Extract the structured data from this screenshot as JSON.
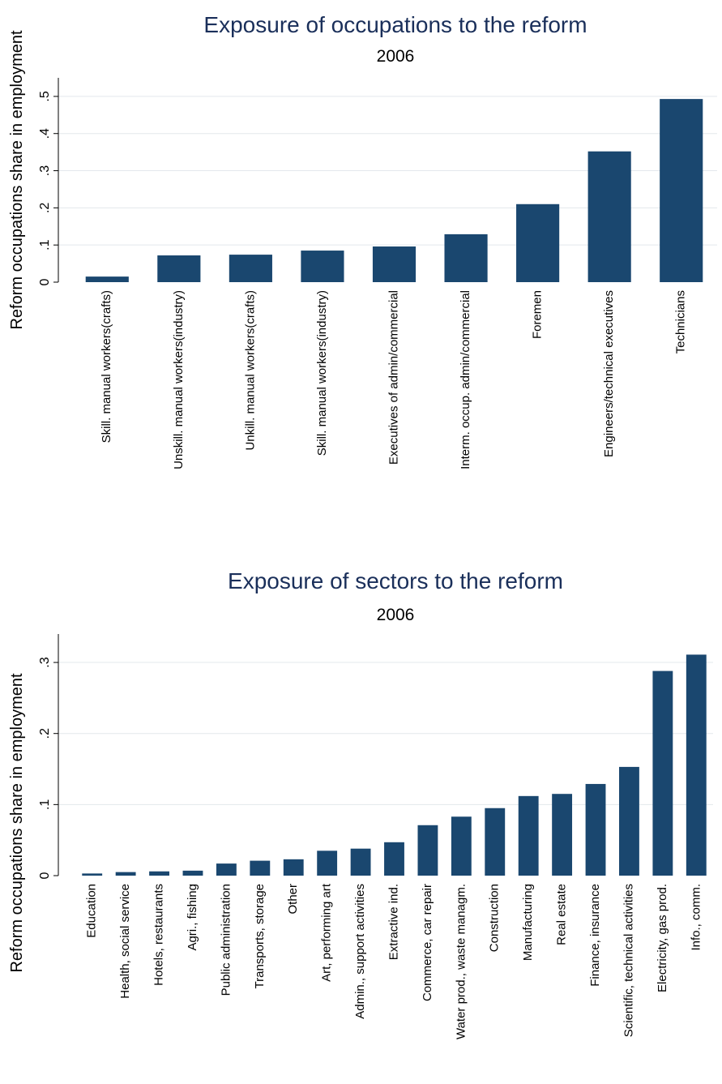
{
  "chart_data": [
    {
      "type": "bar",
      "title": "Exposure of occupations to the reform",
      "subtitle": "2006",
      "y_label": "Reform occupations share in employment",
      "categories": [
        "Skill. manual workers(crafts)",
        "Unskill. manual workers(industry)",
        "Unkill. manual workers(crafts)",
        "Skill. manual workers(industry)",
        "Executives of admin/commercial",
        "Interm. occup. admin/commercial",
        "Foremen",
        "Engineers/technical executives",
        "Technicians"
      ],
      "values": [
        0.015,
        0.072,
        0.074,
        0.085,
        0.096,
        0.129,
        0.21,
        0.352,
        0.493
      ],
      "color": "#1a476f",
      "ylim": [
        0,
        0.55
      ],
      "yticks": [
        0,
        {
          "value": 0.1,
          "label": ".1"
        },
        {
          "value": 0.2,
          "label": ".2"
        },
        {
          "value": 0.3,
          "label": ".3"
        },
        {
          "value": 0.4,
          "label": ".4"
        },
        {
          "value": 0.5,
          "label": ".5"
        }
      ],
      "grid": true
    },
    {
      "type": "bar",
      "title": "Exposure of sectors to the reform",
      "subtitle": "2006",
      "y_label": "Reform occupations share in employment",
      "categories": [
        "Education",
        "Health, social service",
        "Hotels, restaurants",
        "Agri., fishing",
        "Public administration",
        "Transports, storage",
        "Other",
        "Art, performing art",
        "Admin., support activities",
        "Extractive ind.",
        "Commerce, car repair",
        "Water prod., waste managm.",
        "Construction",
        "Manufacturing",
        "Real estate",
        "Finance, insurance",
        "Scientific, technical activities",
        "Electricity, gas prod.",
        "Info., comm."
      ],
      "values": [
        0.003,
        0.005,
        0.006,
        0.007,
        0.017,
        0.021,
        0.023,
        0.035,
        0.038,
        0.047,
        0.071,
        0.083,
        0.095,
        0.112,
        0.115,
        0.129,
        0.153,
        0.288,
        0.311
      ],
      "color": "#1a476f",
      "ylim": [
        0,
        0.34
      ],
      "yticks": [
        0,
        {
          "value": 0.1,
          "label": ".1"
        },
        {
          "value": 0.2,
          "label": ".2"
        },
        {
          "value": 0.3,
          "label": ".3"
        }
      ],
      "grid": true
    }
  ]
}
